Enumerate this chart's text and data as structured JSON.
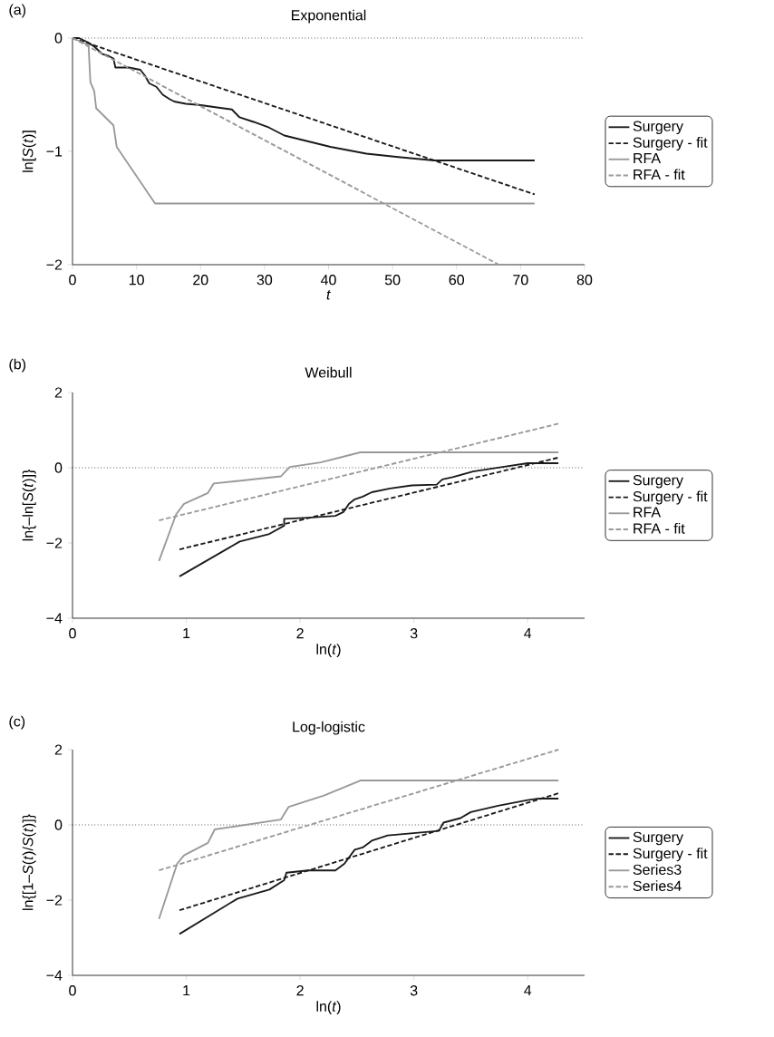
{
  "chart_data": [
    {
      "type": "line",
      "title": "Exponential",
      "xlabel": "*t*",
      "ylabel": "ln[*S*(*t*)]",
      "annotations": [
        "(a)"
      ],
      "xlim": [
        0,
        80
      ],
      "xticks": [
        0,
        10,
        20,
        30,
        40,
        50,
        60,
        70,
        80
      ],
      "ylim": [
        -2,
        0
      ],
      "yticks": [
        {
          "value": -2,
          "label": "−2"
        },
        {
          "value": -1,
          "label": "−1"
        },
        0
      ],
      "legend": "right",
      "marker": "none",
      "ref_lines": [
        {
          "axis": "y",
          "value": 0,
          "line_style": "dotted",
          "color": "#000000"
        }
      ],
      "series": [
        {
          "name": "Surgery",
          "color": "#1a1a1a",
          "line_style": "solid",
          "x": [
            0,
            1,
            2.5,
            3.5,
            4.6,
            5.7,
            6.4,
            6.7,
            8.8,
            10.6,
            11.3,
            12,
            13.1,
            14.1,
            15.2,
            15.9,
            17.7,
            19.8,
            22.3,
            24.9,
            26.1,
            28.3,
            30.7,
            33.1,
            36.7,
            40.3,
            45.9,
            50.9,
            56.5,
            72.2
          ],
          "values": [
            0,
            0,
            -0.04,
            -0.08,
            -0.14,
            -0.16,
            -0.18,
            -0.26,
            -0.26,
            -0.28,
            -0.33,
            -0.4,
            -0.43,
            -0.5,
            -0.54,
            -0.56,
            -0.58,
            -0.59,
            -0.61,
            -0.63,
            -0.7,
            -0.74,
            -0.79,
            -0.86,
            -0.91,
            -0.96,
            -1.02,
            -1.05,
            -1.08,
            -1.08
          ]
        },
        {
          "name": "Surgery - fit",
          "color": "#1a1a1a",
          "line_style": "dashed",
          "x": [
            0,
            72.2
          ],
          "values": [
            0,
            -1.38
          ]
        },
        {
          "name": "RFA",
          "color": "#999999",
          "line_style": "solid",
          "x": [
            0,
            2.5,
            2.8,
            3.4,
            3.7,
            6.4,
            6.9,
            12.9,
            72.2
          ],
          "values": [
            0,
            -0.06,
            -0.39,
            -0.47,
            -0.62,
            -0.77,
            -0.96,
            -1.46,
            -1.46
          ]
        },
        {
          "name": "RFA - fit",
          "color": "#999999",
          "line_style": "dashed",
          "x": [
            0,
            66.6
          ],
          "values": [
            0,
            -2
          ]
        }
      ]
    },
    {
      "type": "line",
      "title": "Weibull",
      "xlabel": "ln(*t*)",
      "ylabel": "ln{–ln[*S*(*t*)]}",
      "annotations": [
        "(b)"
      ],
      "xlim": [
        0,
        4.5
      ],
      "xticks": [
        0,
        1,
        2,
        3,
        4
      ],
      "ylim": [
        -4,
        2
      ],
      "yticks": [
        {
          "value": -4,
          "label": "−4"
        },
        {
          "value": -2,
          "label": "−2"
        },
        0,
        2
      ],
      "legend": "right",
      "marker": "none",
      "ref_lines": [
        {
          "axis": "y",
          "value": 0,
          "line_style": "dotted",
          "color": "#000000"
        }
      ],
      "series": [
        {
          "name": "Surgery",
          "color": "#1a1a1a",
          "line_style": "solid",
          "x": [
            0.94,
            1.47,
            1.73,
            1.86,
            1.86,
            2.07,
            2.31,
            2.38,
            2.43,
            2.48,
            2.55,
            2.63,
            2.79,
            2.98,
            3.2,
            3.25,
            3.34,
            3.52,
            3.78,
            4.0,
            4.27
          ],
          "values": [
            -2.89,
            -1.96,
            -1.76,
            -1.54,
            -1.36,
            -1.33,
            -1.28,
            -1.18,
            -0.96,
            -0.84,
            -0.77,
            -0.65,
            -0.55,
            -0.47,
            -0.45,
            -0.31,
            -0.25,
            -0.1,
            0.02,
            0.12,
            0.12
          ]
        },
        {
          "name": "Surgery - fit",
          "color": "#1a1a1a",
          "line_style": "dashed",
          "x": [
            0.94,
            4.27
          ],
          "values": [
            -2.17,
            0.27
          ]
        },
        {
          "name": "RFA",
          "color": "#999999",
          "line_style": "solid",
          "x": [
            0.76,
            0.91,
            0.98,
            1.19,
            1.24,
            1.83,
            1.91,
            2.18,
            2.53,
            4.27
          ],
          "values": [
            -2.48,
            -1.24,
            -0.96,
            -0.67,
            -0.42,
            -0.23,
            0.02,
            0.14,
            0.41,
            0.41
          ]
        },
        {
          "name": "RFA - fit",
          "color": "#999999",
          "line_style": "dashed",
          "x": [
            0.76,
            4.27
          ],
          "values": [
            -1.4,
            1.17
          ]
        }
      ]
    },
    {
      "type": "line",
      "title": "Log-logistic",
      "xlabel": "ln(*t*)",
      "ylabel": "ln{[1–*S*(*t*)/*S*(*t*)]}",
      "annotations": [
        "(c)"
      ],
      "xlim": [
        0,
        4.5
      ],
      "xticks": [
        0,
        1,
        2,
        3,
        4
      ],
      "ylim": [
        -4,
        2
      ],
      "yticks": [
        {
          "value": -4,
          "label": "−4"
        },
        {
          "value": -2,
          "label": "−2"
        },
        0,
        2
      ],
      "legend": "right",
      "marker": "none",
      "ref_lines": [
        {
          "axis": "y",
          "value": 0,
          "line_style": "dotted",
          "color": "#000000"
        }
      ],
      "series": [
        {
          "name": "Surgery",
          "color": "#1a1a1a",
          "line_style": "solid",
          "x": [
            0.94,
            1.45,
            1.73,
            1.86,
            1.88,
            2.07,
            2.31,
            2.39,
            2.48,
            2.55,
            2.63,
            2.77,
            3.22,
            3.26,
            3.41,
            3.5,
            3.74,
            4.0,
            4.1,
            4.27
          ],
          "values": [
            -2.9,
            -1.96,
            -1.72,
            -1.47,
            -1.27,
            -1.21,
            -1.21,
            -1.03,
            -0.66,
            -0.6,
            -0.42,
            -0.28,
            -0.16,
            0.06,
            0.18,
            0.34,
            0.51,
            0.66,
            0.7,
            0.7
          ]
        },
        {
          "name": "Surgery - fit",
          "color": "#1a1a1a",
          "line_style": "dashed",
          "x": [
            0.94,
            4.27
          ],
          "values": [
            -2.27,
            0.84
          ]
        },
        {
          "name": "Series3",
          "color": "#999999",
          "line_style": "solid",
          "x": [
            0.76,
            0.92,
            0.98,
            1.19,
            1.25,
            1.83,
            1.9,
            2.21,
            2.53,
            4.27
          ],
          "values": [
            -2.5,
            -1.03,
            -0.81,
            -0.48,
            -0.12,
            0.14,
            0.48,
            0.78,
            1.18,
            1.18
          ]
        },
        {
          "name": "Series4",
          "color": "#999999",
          "line_style": "dashed",
          "x": [
            0.76,
            4.27
          ],
          "values": [
            -1.21,
            2.0
          ]
        }
      ]
    }
  ]
}
